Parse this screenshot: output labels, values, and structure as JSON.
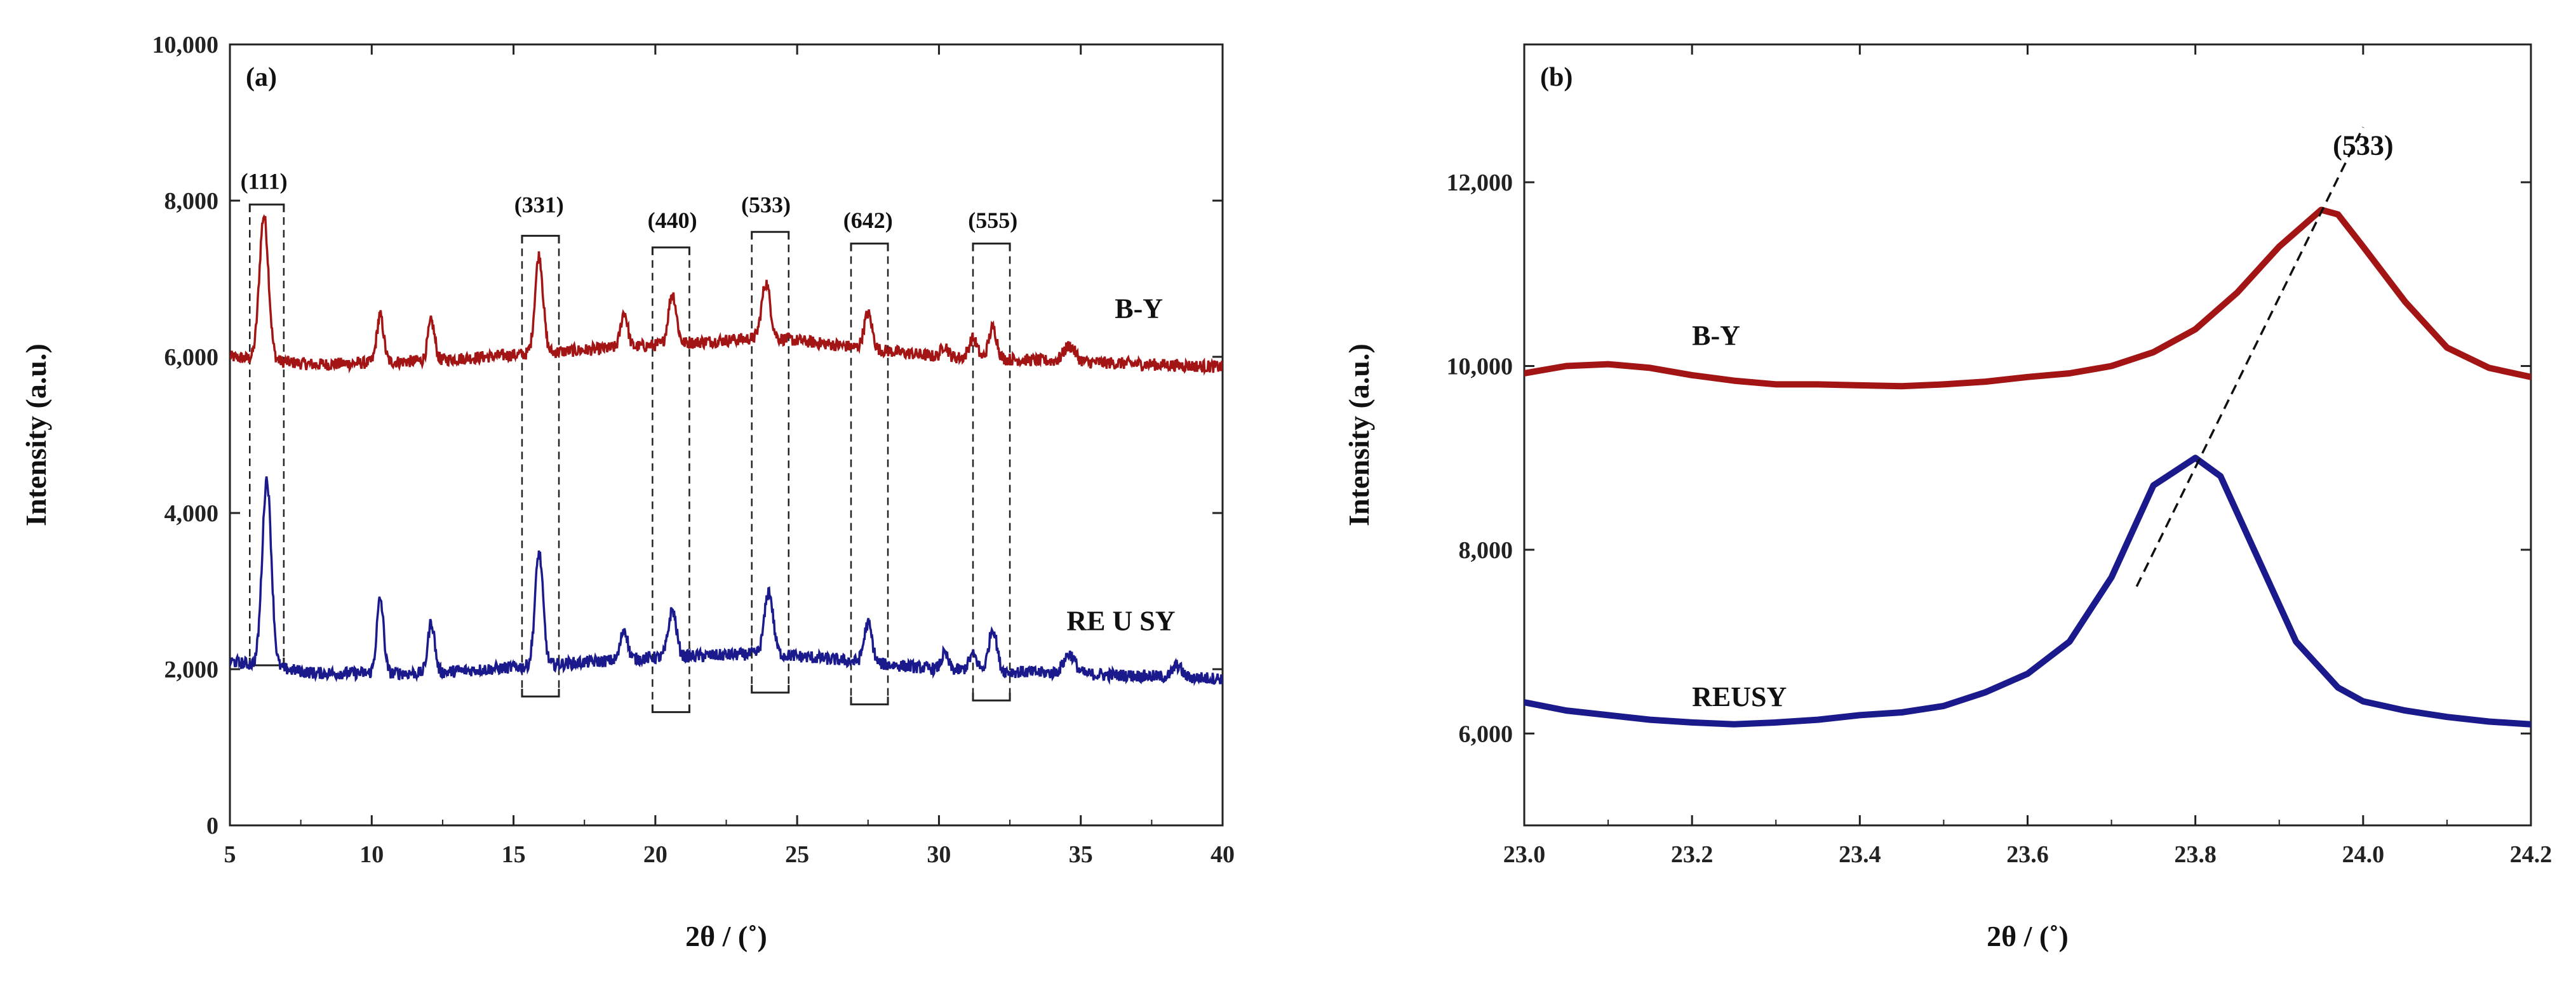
{
  "chart_data": [
    {
      "panel": "(a)",
      "type": "line",
      "xlabel": "2θ / (˚)",
      "ylabel": "Intensity (a.u.)",
      "xlim": [
        5,
        40
      ],
      "ylim": [
        0,
        10000
      ],
      "xticks": [
        5,
        10,
        15,
        20,
        25,
        30,
        35,
        40
      ],
      "yticks": [
        0,
        2000,
        4000,
        6000,
        8000,
        10000
      ],
      "ytick_labels": [
        "0",
        "2,000",
        "4,000",
        "6,000",
        "8,000",
        "10,000"
      ],
      "xtick_labels": [
        "5",
        "10",
        "15",
        "20",
        "25",
        "30",
        "35",
        "40"
      ],
      "series": [
        {
          "name": "B-Y",
          "color": "#a31515",
          "baseline": 5900,
          "baseline_points": [
            [
              5,
              6000
            ],
            [
              8,
              5900
            ],
            [
              12,
              5950
            ],
            [
              20,
              6150
            ],
            [
              24,
              6250
            ],
            [
              30,
              6000
            ],
            [
              40,
              5870
            ]
          ],
          "peaks": [
            [
              6.2,
              1850,
              0.16
            ],
            [
              10.3,
              600,
              0.12
            ],
            [
              12.1,
              500,
              0.12
            ],
            [
              15.9,
              1250,
              0.14
            ],
            [
              18.9,
              450,
              0.12
            ],
            [
              20.6,
              650,
              0.14
            ],
            [
              23.9,
              700,
              0.15
            ],
            [
              27.5,
              450,
              0.14
            ],
            [
              30.2,
              150,
              0.12
            ],
            [
              31.2,
              250,
              0.14
            ],
            [
              31.9,
              400,
              0.14
            ],
            [
              34.6,
              200,
              0.2
            ]
          ],
          "label_pos": [
            36.2,
            6500
          ]
        },
        {
          "name": "RE U SY",
          "color": "#1a1a8c",
          "baseline": 1950,
          "baseline_points": [
            [
              5,
              2100
            ],
            [
              8,
              1950
            ],
            [
              12,
              1950
            ],
            [
              20,
              2150
            ],
            [
              24,
              2200
            ],
            [
              30,
              2000
            ],
            [
              40,
              1880
            ]
          ],
          "peaks": [
            [
              6.3,
              2400,
              0.16
            ],
            [
              10.3,
              950,
              0.12
            ],
            [
              12.1,
              650,
              0.12
            ],
            [
              15.9,
              1450,
              0.14
            ],
            [
              18.9,
              400,
              0.12
            ],
            [
              20.6,
              600,
              0.14
            ],
            [
              24.0,
              800,
              0.15
            ],
            [
              27.5,
              500,
              0.14
            ],
            [
              30.2,
              200,
              0.12
            ],
            [
              31.2,
              200,
              0.14
            ],
            [
              31.9,
              550,
              0.14
            ],
            [
              34.6,
              250,
              0.2
            ],
            [
              38.4,
              150,
              0.15
            ]
          ],
          "label_pos": [
            34.5,
            2500
          ]
        }
      ],
      "annotations": [
        {
          "text": "(111)",
          "x": 6.2,
          "y": 8150
        },
        {
          "text": "(331)",
          "x": 15.9,
          "y": 7850
        },
        {
          "text": "(440)",
          "x": 20.6,
          "y": 7650
        },
        {
          "text": "(533)",
          "x": 23.9,
          "y": 7850
        },
        {
          "text": "(642)",
          "x": 27.5,
          "y": 7650
        },
        {
          "text": "(555)",
          "x": 31.9,
          "y": 7650
        }
      ],
      "brackets": [
        {
          "x0": 5.7,
          "x1": 6.9,
          "top": 7950,
          "bottom": 2050
        },
        {
          "x0": 15.3,
          "x1": 16.6,
          "top": 7550,
          "bottom": 1650
        },
        {
          "x0": 19.9,
          "x1": 21.2,
          "top": 7400,
          "bottom": 1450
        },
        {
          "x0": 23.4,
          "x1": 24.7,
          "top": 7600,
          "bottom": 1700
        },
        {
          "x0": 26.9,
          "x1": 28.2,
          "top": 7450,
          "bottom": 1550
        },
        {
          "x0": 31.2,
          "x1": 32.5,
          "top": 7450,
          "bottom": 1600
        }
      ]
    },
    {
      "panel": "(b)",
      "type": "line",
      "xlabel": "2θ / (˚)",
      "ylabel": "Intensity (a.u.)",
      "xlim": [
        23.0,
        24.2
      ],
      "ylim": [
        5000,
        13500
      ],
      "xticks": [
        23.0,
        23.2,
        23.4,
        23.6,
        23.8,
        24.0,
        24.2
      ],
      "xtick_labels": [
        "23.0",
        "23.2",
        "23.4",
        "23.6",
        "23.8",
        "24.0",
        "24.2"
      ],
      "yticks": [
        6000,
        8000,
        10000,
        12000
      ],
      "ytick_labels": [
        "6,000",
        "8,000",
        "10,000",
        "12,000"
      ],
      "series": [
        {
          "name": "B-Y",
          "color": "#a31515",
          "points": [
            [
              23.0,
              9920
            ],
            [
              23.05,
              10000
            ],
            [
              23.1,
              10020
            ],
            [
              23.15,
              9980
            ],
            [
              23.2,
              9900
            ],
            [
              23.25,
              9840
            ],
            [
              23.3,
              9800
            ],
            [
              23.35,
              9800
            ],
            [
              23.4,
              9790
            ],
            [
              23.45,
              9780
            ],
            [
              23.5,
              9800
            ],
            [
              23.55,
              9830
            ],
            [
              23.6,
              9880
            ],
            [
              23.65,
              9920
            ],
            [
              23.7,
              10000
            ],
            [
              23.75,
              10150
            ],
            [
              23.8,
              10400
            ],
            [
              23.85,
              10800
            ],
            [
              23.9,
              11300
            ],
            [
              23.95,
              11700
            ],
            [
              23.97,
              11650
            ],
            [
              24.0,
              11300
            ],
            [
              24.05,
              10700
            ],
            [
              24.1,
              10200
            ],
            [
              24.15,
              9980
            ],
            [
              24.2,
              9880
            ]
          ],
          "label_pos": [
            23.2,
            10230
          ]
        },
        {
          "name": "REUSY",
          "color": "#1a1a8c",
          "points": [
            [
              23.0,
              6340
            ],
            [
              23.05,
              6250
            ],
            [
              23.1,
              6200
            ],
            [
              23.15,
              6150
            ],
            [
              23.2,
              6120
            ],
            [
              23.25,
              6100
            ],
            [
              23.3,
              6120
            ],
            [
              23.35,
              6150
            ],
            [
              23.4,
              6200
            ],
            [
              23.45,
              6230
            ],
            [
              23.5,
              6300
            ],
            [
              23.55,
              6450
            ],
            [
              23.6,
              6650
            ],
            [
              23.65,
              7000
            ],
            [
              23.7,
              7700
            ],
            [
              23.75,
              8700
            ],
            [
              23.8,
              9000
            ],
            [
              23.83,
              8800
            ],
            [
              23.87,
              8000
            ],
            [
              23.92,
              7000
            ],
            [
              23.97,
              6500
            ],
            [
              24.0,
              6350
            ],
            [
              24.05,
              6250
            ],
            [
              24.1,
              6180
            ],
            [
              24.15,
              6130
            ],
            [
              24.2,
              6100
            ]
          ],
          "label_pos": [
            23.2,
            6300
          ]
        }
      ],
      "annotations": [
        {
          "text": "(533)",
          "x": 24.0,
          "y": 12300
        }
      ],
      "dashed_line": [
        [
          23.73,
          7600
        ],
        [
          24.0,
          12600
        ]
      ]
    }
  ]
}
